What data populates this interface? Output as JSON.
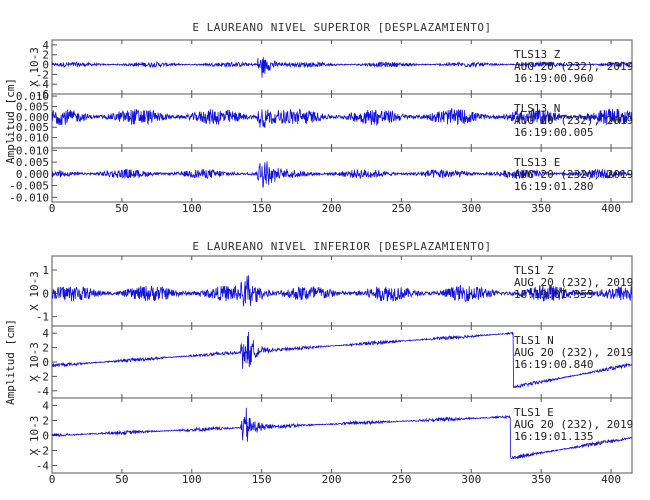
{
  "chart_data": [
    {
      "type": "line",
      "title": "E LAUREANO NIVEL SUPERIOR [DESPLAZAMIENTO]",
      "ylabel": "Amplitud [cm]",
      "xlim": [
        0,
        415
      ],
      "xticks": [
        "0",
        "50",
        "100",
        "150",
        "200",
        "250",
        "300",
        "350",
        "400"
      ],
      "panels": [
        {
          "name": "Z",
          "yscale_label": "X 10-3",
          "ylim": [
            -6,
            5
          ],
          "yticks": [
            "4",
            "2",
            "0",
            "-2",
            "-4",
            "-6"
          ],
          "annotation": [
            "TLS13   Z",
            "AUG 20 (232), 2019",
            "16:19:00.960"
          ],
          "event_time": 150,
          "event_amp": 3.5,
          "noise_amp": 0.5,
          "drift": [
            0,
            0,
            0
          ]
        },
        {
          "name": "N",
          "yscale_label": "",
          "ylim": [
            -0.015,
            0.011
          ],
          "yticks": [
            "0.010",
            "0.005",
            "0.000",
            "-0.005",
            "-0.010"
          ],
          "annotation": [
            "TLS13   N",
            "AUG 20 (232), 2019",
            "16:19:00.005"
          ],
          "event_time": 150,
          "event_amp": 0.009,
          "noise_amp": 0.004,
          "drift": [
            0,
            0,
            0
          ]
        },
        {
          "name": "E",
          "yscale_label": "",
          "ylim": [
            -0.012,
            0.011
          ],
          "yticks": [
            "0.010",
            "0.005",
            "0.000",
            "-0.005",
            "-0.010"
          ],
          "annotation": [
            "TLS13   E",
            "AUG 20 (232), 2019",
            "16:19:01.280"
          ],
          "event_time": 150,
          "event_amp": 0.01,
          "noise_amp": 0.002,
          "drift": [
            0,
            0,
            0
          ]
        }
      ]
    },
    {
      "type": "line",
      "title": "E LAUREANO NIVEL INFERIOR [DESPLAZAMIENTO]",
      "ylabel": "Amplitud [cm]",
      "xlim": [
        0,
        415
      ],
      "xticks": [
        "0",
        "50",
        "100",
        "150",
        "200",
        "250",
        "300",
        "350",
        "400"
      ],
      "panels": [
        {
          "name": "Z",
          "yscale_label": "X 10-3",
          "ylim": [
            -1.4,
            1.6
          ],
          "yticks": [
            "1",
            "0",
            "-1"
          ],
          "annotation": [
            "TLS1   Z",
            "AUG 20 (232), 2019",
            "16:19:01.355"
          ],
          "event_time": 138,
          "event_amp": 1.4,
          "noise_amp": 0.35,
          "drift": [
            0,
            0,
            0
          ]
        },
        {
          "name": "N",
          "yscale_label": "X 10-3",
          "ylim": [
            -5,
            5
          ],
          "yticks": [
            "4",
            "2",
            "0",
            "-2",
            "-4"
          ],
          "annotation": [
            "TLS1   N",
            "AUG 20 (232), 2019",
            "16:19:00.840"
          ],
          "event_time": 138,
          "event_amp": 4,
          "noise_amp": 0.25,
          "drift": [
            -0.5,
            4.0,
            330
          ],
          "step_to": -3.5
        },
        {
          "name": "E",
          "yscale_label": "X 10-3",
          "ylim": [
            -5,
            5
          ],
          "yticks": [
            "4",
            "2",
            "0",
            "-2",
            "-4"
          ],
          "annotation": [
            "TLS1   E",
            "AUG 20 (232), 2019",
            "16:19:01.135"
          ],
          "event_time": 138,
          "event_amp": 3.5,
          "noise_amp": 0.25,
          "drift": [
            0,
            2.5,
            328
          ],
          "step_to": -3.0
        }
      ]
    }
  ],
  "colors": {
    "trace": "#1010e0",
    "frame": "#555555",
    "text": "#222222"
  }
}
